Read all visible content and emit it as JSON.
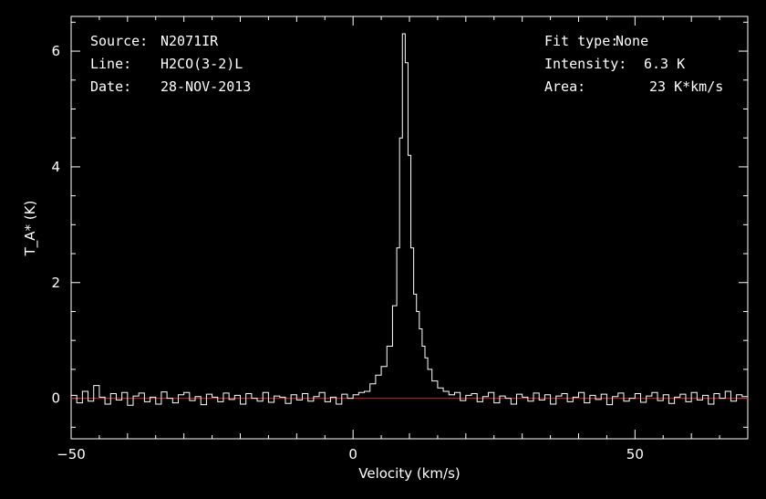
{
  "header": {
    "source_label": "Source:",
    "source_value": "N2071IR",
    "line_label": "Line:",
    "line_value": "H2CO(3-2)L",
    "date_label": "Date:",
    "date_value": "28-NOV-2013",
    "fit_label": "Fit type:",
    "fit_value": "None",
    "intensity_label": "Intensity:",
    "intensity_value": "6.3 K",
    "area_label": "Area:",
    "area_value": "23 K*km/s"
  },
  "colors": {
    "background": "#000000",
    "axes": "#ffffff",
    "spectrum": "#ffffff",
    "baseline": "#cc2222"
  },
  "chart_data": {
    "type": "line",
    "style": "step",
    "xlabel": "Velocity (km/s)",
    "ylabel": "T_A* (K)",
    "xlim": [
      -50,
      70
    ],
    "ylim": [
      -0.7,
      6.6
    ],
    "xticks": [
      -50,
      0,
      50
    ],
    "yticks": [
      0,
      2,
      4,
      6
    ],
    "baseline": 0,
    "series": [
      {
        "x": [
          -49.5,
          -48.5,
          -47.5,
          -46.5,
          -45.5,
          -44.5,
          -43.5,
          -42.5,
          -41.5,
          -40.5,
          -39.5,
          -38.5,
          -37.5,
          -36.5,
          -35.5,
          -34.5,
          -33.5,
          -32.5,
          -31.5,
          -30.5,
          -29.5,
          -28.5,
          -27.5,
          -26.5,
          -25.5,
          -24.5,
          -23.5,
          -22.5,
          -21.5,
          -20.5,
          -19.5,
          -18.5,
          -17.5,
          -16.5,
          -15.5,
          -14.5,
          -13.5,
          -12.5,
          -11.5,
          -10.5,
          -9.5,
          -8.5,
          -7.5,
          -6.5,
          -5.5,
          -4.5,
          -3.5,
          -2.5,
          -1.5,
          -0.5,
          0.5,
          1.5,
          2.5,
          3.5,
          4.5,
          5.5,
          6.5,
          7.5,
          8,
          8.5,
          9,
          9.5,
          10,
          10.5,
          11,
          11.5,
          12,
          12.5,
          13,
          13.5,
          14.5,
          15.5,
          16.5,
          17.5,
          18.5,
          19.5,
          20.5,
          21.5,
          22.5,
          23.5,
          24.5,
          25.5,
          26.5,
          27.5,
          28.5,
          29.5,
          30.5,
          31.5,
          32.5,
          33.5,
          34.5,
          35.5,
          36.5,
          37.5,
          38.5,
          39.5,
          40.5,
          41.5,
          42.5,
          43.5,
          44.5,
          45.5,
          46.5,
          47.5,
          48.5,
          49.5,
          50.5,
          51.5,
          52.5,
          53.5,
          54.5,
          55.5,
          56.5,
          57.5,
          58.5,
          59.5,
          60.5,
          61.5,
          62.5,
          63.5,
          64.5,
          65.5,
          66.5,
          67.5,
          68.5,
          69.5
        ],
        "y": [
          0.05,
          -0.08,
          0.12,
          -0.05,
          0.22,
          0.02,
          -0.1,
          0.08,
          -0.03,
          0.1,
          -0.12,
          0.04,
          0.09,
          -0.06,
          0.02,
          -0.1,
          0.11,
          0.0,
          -0.08,
          0.06,
          0.1,
          -0.04,
          0.03,
          -0.11,
          0.07,
          0.02,
          -0.06,
          0.09,
          -0.02,
          0.05,
          -0.1,
          0.08,
          0.0,
          -0.05,
          0.1,
          -0.07,
          0.04,
          0.02,
          -0.09,
          0.06,
          -0.03,
          0.08,
          -0.05,
          0.03,
          0.1,
          -0.06,
          0.02,
          -0.1,
          0.07,
          0.0,
          0.06,
          0.1,
          0.12,
          0.25,
          0.4,
          0.55,
          0.9,
          1.6,
          2.6,
          4.5,
          6.3,
          5.8,
          4.2,
          2.6,
          1.8,
          1.5,
          1.2,
          0.9,
          0.7,
          0.5,
          0.3,
          0.18,
          0.12,
          0.06,
          0.1,
          -0.04,
          0.05,
          0.08,
          -0.06,
          0.03,
          0.1,
          -0.08,
          0.04,
          0.0,
          -0.1,
          0.07,
          0.02,
          -0.05,
          0.09,
          -0.03,
          0.06,
          -0.1,
          0.04,
          0.08,
          -0.06,
          0.02,
          0.1,
          -0.08,
          0.05,
          -0.02,
          0.07,
          -0.11,
          0.03,
          0.09,
          -0.05,
          0.0,
          0.08,
          -0.07,
          0.04,
          0.1,
          -0.04,
          0.06,
          -0.09,
          0.02,
          0.07,
          -0.06,
          0.1,
          -0.03,
          0.05,
          -0.1,
          0.08,
          0.0,
          0.12,
          -0.05,
          0.06,
          0.03
        ]
      }
    ]
  }
}
